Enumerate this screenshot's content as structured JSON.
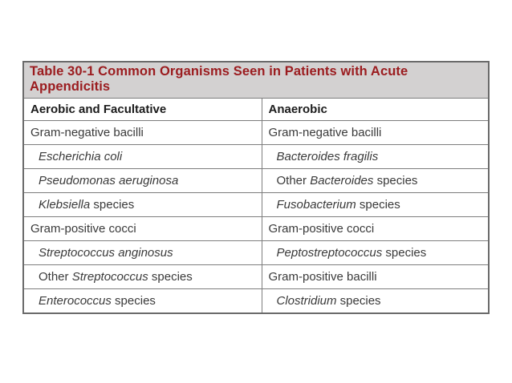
{
  "table": {
    "title": "Table 30-1 Common Organisms Seen in Patients with Acute Appendicitis",
    "columns": [
      {
        "header": "Aerobic and Facultative"
      },
      {
        "header": "Anaerobic"
      }
    ],
    "rows": [
      [
        {
          "indent": false,
          "segments": [
            {
              "text": "Gram-negative bacilli",
              "italic": false
            }
          ]
        },
        {
          "indent": false,
          "segments": [
            {
              "text": "Gram-negative bacilli",
              "italic": false
            }
          ]
        }
      ],
      [
        {
          "indent": true,
          "segments": [
            {
              "text": "Escherichia coli",
              "italic": true
            }
          ]
        },
        {
          "indent": true,
          "segments": [
            {
              "text": "Bacteroides fragilis",
              "italic": true
            }
          ]
        }
      ],
      [
        {
          "indent": true,
          "segments": [
            {
              "text": "Pseudomonas aeruginosa",
              "italic": true
            }
          ]
        },
        {
          "indent": true,
          "segments": [
            {
              "text": "Other ",
              "italic": false
            },
            {
              "text": "Bacteroides",
              "italic": true
            },
            {
              "text": " species",
              "italic": false
            }
          ]
        }
      ],
      [
        {
          "indent": true,
          "segments": [
            {
              "text": "Klebsiella",
              "italic": true
            },
            {
              "text": " species",
              "italic": false
            }
          ]
        },
        {
          "indent": true,
          "segments": [
            {
              "text": "Fusobacterium",
              "italic": true
            },
            {
              "text": " species",
              "italic": false
            }
          ]
        }
      ],
      [
        {
          "indent": false,
          "segments": [
            {
              "text": "Gram-positive cocci",
              "italic": false
            }
          ]
        },
        {
          "indent": false,
          "segments": [
            {
              "text": "Gram-positive cocci",
              "italic": false
            }
          ]
        }
      ],
      [
        {
          "indent": true,
          "segments": [
            {
              "text": "Streptococcus anginosus",
              "italic": true
            }
          ]
        },
        {
          "indent": true,
          "segments": [
            {
              "text": "Peptostreptococcus",
              "italic": true
            },
            {
              "text": " species",
              "italic": false
            }
          ]
        }
      ],
      [
        {
          "indent": true,
          "segments": [
            {
              "text": "Other ",
              "italic": false
            },
            {
              "text": "Streptococcus",
              "italic": true
            },
            {
              "text": " species",
              "italic": false
            }
          ]
        },
        {
          "indent": false,
          "segments": [
            {
              "text": "Gram-positive bacilli",
              "italic": false
            }
          ]
        }
      ],
      [
        {
          "indent": true,
          "segments": [
            {
              "text": "Enterococcus",
              "italic": true
            },
            {
              "text": " species",
              "italic": false
            }
          ]
        },
        {
          "indent": true,
          "segments": [
            {
              "text": "Clostridium",
              "italic": true
            },
            {
              "text": " species",
              "italic": false
            }
          ]
        }
      ]
    ],
    "colors": {
      "title_text": "#9b1c1f",
      "title_bg": "#d3d1d1",
      "border_outer": "#6a6a6a",
      "border_inner": "#7d7d7d",
      "cell_text": "#3a3a3a",
      "page_bg": "#ffffff"
    }
  }
}
